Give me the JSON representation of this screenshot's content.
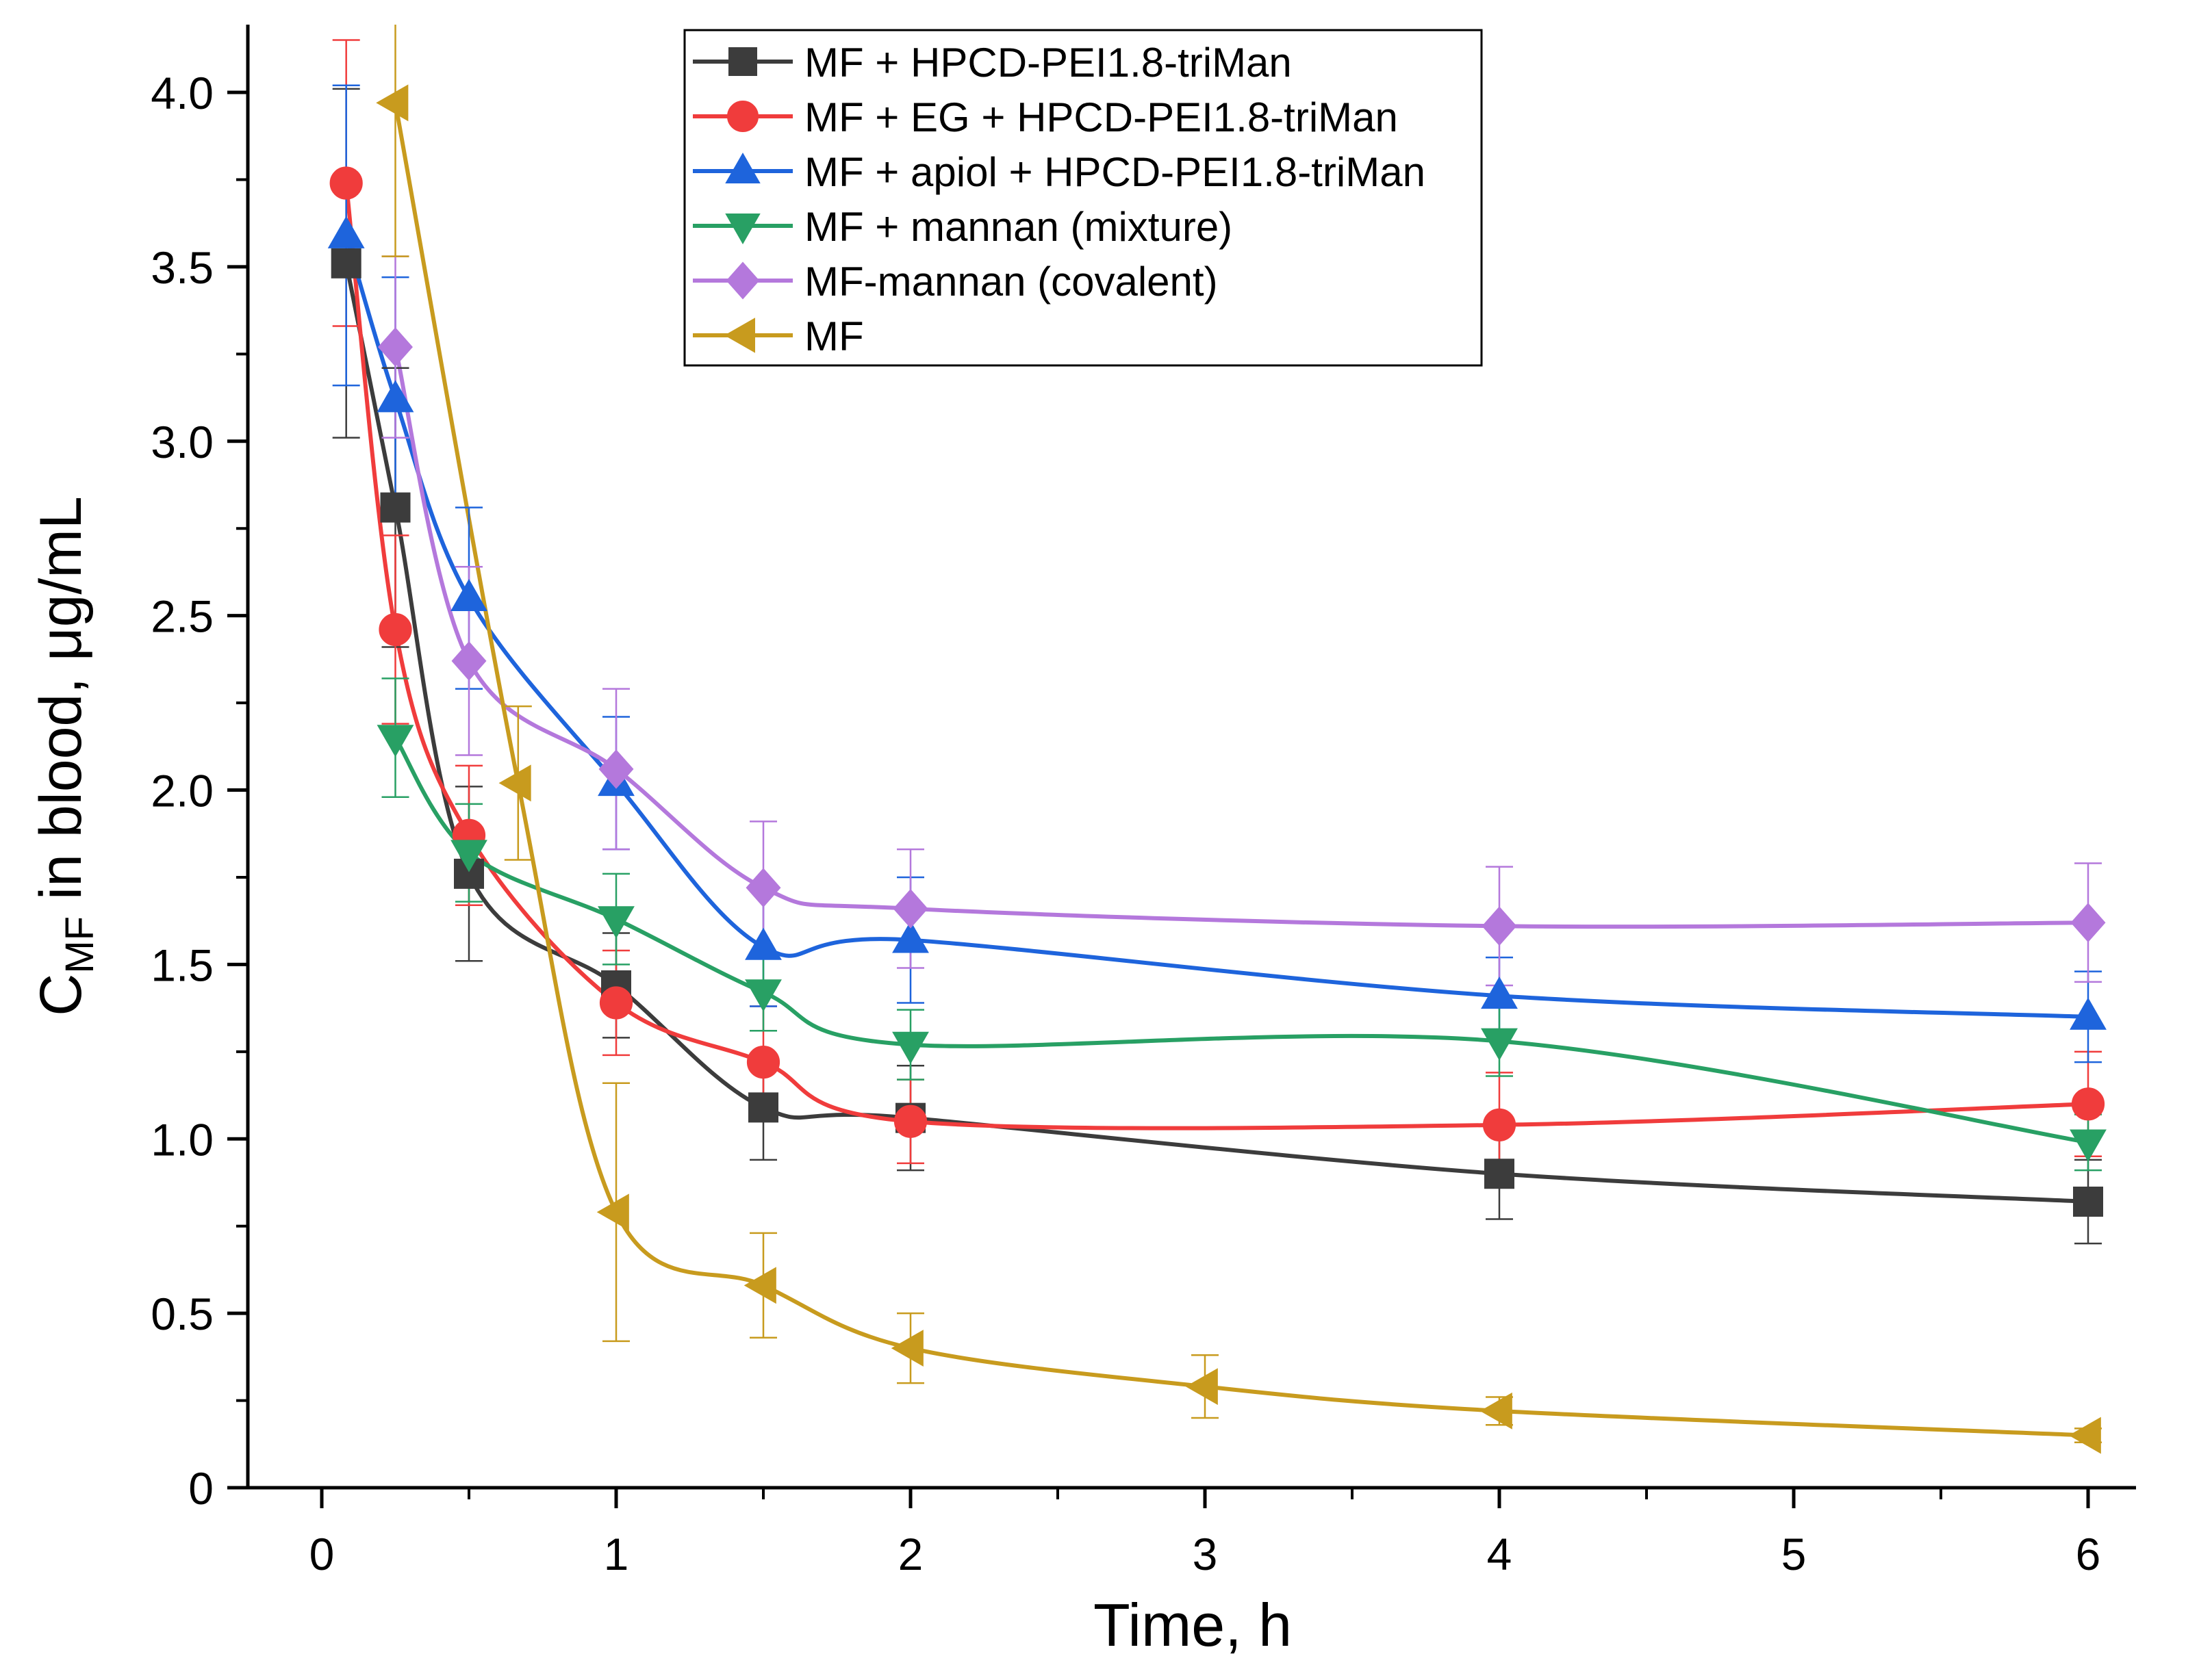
{
  "chart_data": {
    "type": "line",
    "xlabel": "Time, h",
    "ylabel_parts": {
      "main": "C",
      "sub": "MF",
      "rest": " in blood, μg/mL"
    },
    "xlim": [
      -0.25,
      6.3
    ],
    "ylim": [
      0,
      4.25
    ],
    "x_ticks": [
      0,
      1,
      2,
      3,
      4,
      5,
      6
    ],
    "y_ticks": [
      0,
      0.5,
      1.0,
      1.5,
      2.0,
      2.5,
      3.0,
      3.5,
      4.0
    ],
    "x_tick_labels": [
      "0",
      "1",
      "2",
      "3",
      "4",
      "5",
      "6"
    ],
    "y_tick_labels": [
      "0",
      "0.5",
      "1.0",
      "1.5",
      "2.0",
      "2.5",
      "3.0",
      "3.5",
      "4.0"
    ],
    "legend_position": "top-center",
    "grid": false,
    "series": [
      {
        "name": "MF + HPCD-PEI1.8-triMan",
        "color": "#3c3c3c",
        "marker": "square",
        "x": [
          0.083,
          0.25,
          0.5,
          1,
          1.5,
          2,
          4,
          6
        ],
        "y": [
          3.51,
          2.81,
          1.76,
          1.44,
          1.09,
          1.06,
          0.9,
          0.82
        ],
        "err": [
          0.5,
          0.4,
          0.25,
          0.15,
          0.15,
          0.15,
          0.13,
          0.12
        ]
      },
      {
        "name": "MF + EG + HPCD-PEI1.8-triMan",
        "color": "#f03c3c",
        "marker": "circle",
        "x": [
          0.083,
          0.25,
          0.5,
          1,
          1.5,
          2,
          4,
          6
        ],
        "y": [
          3.74,
          2.46,
          1.87,
          1.39,
          1.22,
          1.05,
          1.04,
          1.1
        ],
        "err": [
          0.41,
          0.27,
          0.2,
          0.15,
          0.16,
          0.12,
          0.15,
          0.15
        ]
      },
      {
        "name": "MF + apiol + HPCD-PEI1.8-triMan",
        "color": "#1e64dc",
        "marker": "triangle-up",
        "x": [
          0.083,
          0.25,
          0.5,
          1,
          1.5,
          2,
          4,
          6
        ],
        "y": [
          3.59,
          3.12,
          2.55,
          2.02,
          1.55,
          1.57,
          1.41,
          1.35
        ],
        "err": [
          0.43,
          0.35,
          0.26,
          0.19,
          0.17,
          0.18,
          0.11,
          0.13
        ]
      },
      {
        "name": "MF + mannan (mixture)",
        "color": "#28a064",
        "marker": "triangle-down",
        "x": [
          0.25,
          0.5,
          1,
          1.5,
          2,
          4,
          6
        ],
        "y": [
          2.15,
          1.82,
          1.63,
          1.42,
          1.27,
          1.28,
          0.99
        ],
        "err": [
          0.17,
          0.14,
          0.13,
          0.11,
          0.1,
          0.1,
          0.08
        ]
      },
      {
        "name": "MF-mannan (covalent)",
        "color": "#b478dc",
        "marker": "diamond",
        "x": [
          0.25,
          0.5,
          1,
          1.5,
          2,
          4,
          6
        ],
        "y": [
          3.27,
          2.37,
          2.06,
          1.72,
          1.66,
          1.61,
          1.62
        ],
        "err": [
          0.26,
          0.27,
          0.23,
          0.19,
          0.17,
          0.17,
          0.17
        ]
      },
      {
        "name": "MF",
        "color": "#c89b1e",
        "marker": "triangle-left",
        "x": [
          0.25,
          0.667,
          1,
          1.5,
          2,
          3,
          4,
          6
        ],
        "y": [
          3.97,
          2.02,
          0.79,
          0.58,
          0.4,
          0.29,
          0.22,
          0.15
        ],
        "err": [
          0.44,
          0.22,
          0.37,
          0.15,
          0.1,
          0.09,
          0.04,
          0.02
        ]
      }
    ]
  }
}
